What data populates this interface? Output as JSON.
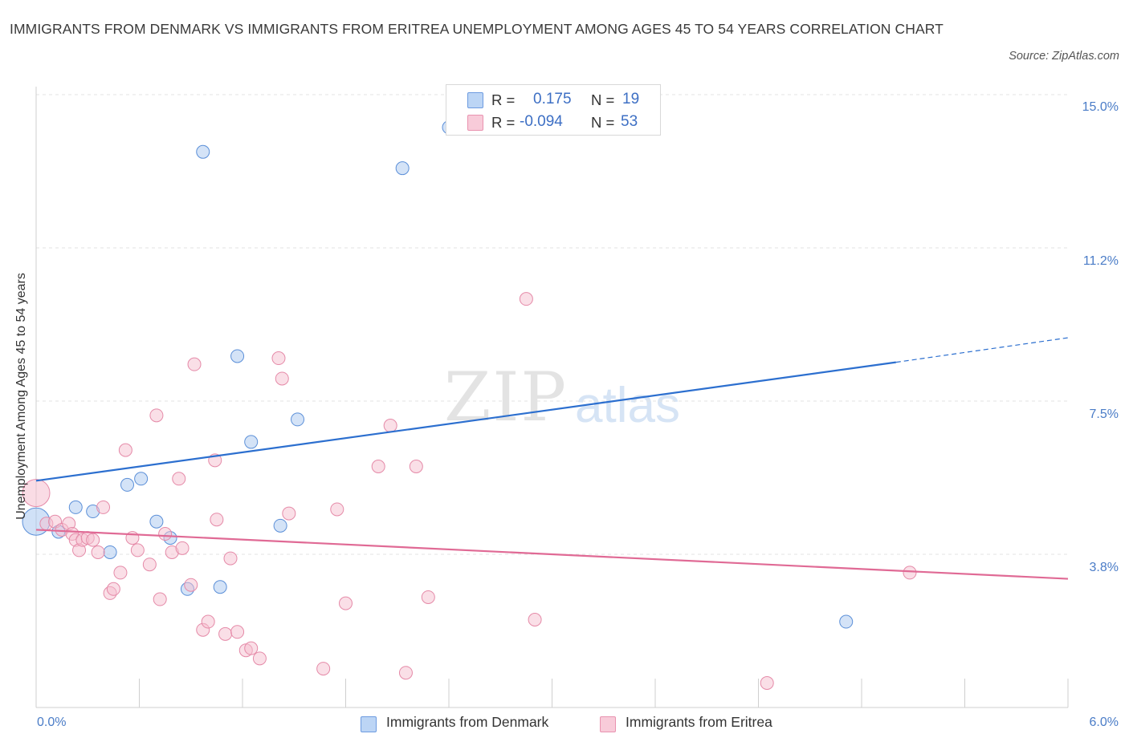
{
  "title": "IMMIGRANTS FROM DENMARK VS IMMIGRANTS FROM ERITREA UNEMPLOYMENT AMONG AGES 45 TO 54 YEARS CORRELATION CHART",
  "source": "Source: ZipAtlas.com",
  "watermark": {
    "zip": "ZIP",
    "atlas": "atlas"
  },
  "legend_top": {
    "rows": [
      {
        "r_label": "R =",
        "r_value": "0.175",
        "n_label": "N =",
        "n_value": "19"
      },
      {
        "r_label": "R =",
        "r_value": "-0.094",
        "n_label": "N =",
        "n_value": "53"
      }
    ]
  },
  "legend_bottom": [
    "Immigrants from Denmark",
    "Immigrants from Eritrea"
  ],
  "colors": {
    "denmark_fill": "#a9c8f0",
    "denmark_stroke": "#5b8fd8",
    "denmark_line": "#2c6fcf",
    "eritrea_fill": "#f6bfd0",
    "eritrea_stroke": "#e58aa8",
    "eritrea_line": "#e06a95",
    "tick_label": "#4a7cc7",
    "grid": "#e3e3e3"
  },
  "chart_data": {
    "type": "scatter",
    "title": "IMMIGRANTS FROM DENMARK VS IMMIGRANTS FROM ERITREA UNEMPLOYMENT AMONG AGES 45 TO 54 YEARS CORRELATION CHART",
    "xlabel": "",
    "ylabel": "Unemployment Among Ages 45 to 54 years",
    "xlim": [
      0,
      6
    ],
    "ylim": [
      0,
      15
    ],
    "x_tick_labels": [
      "0.0%",
      "6.0%"
    ],
    "y_tick_labels": [
      "15.0%",
      "11.2%",
      "7.5%",
      "3.8%"
    ],
    "y_tick_values": [
      15.0,
      11.25,
      7.5,
      3.75
    ],
    "grid": true,
    "legend_position": "bottom",
    "series": [
      {
        "name": "Immigrants from Denmark",
        "R": 0.175,
        "N": 19,
        "trend": {
          "x0": 0.0,
          "y0": 5.55,
          "x1": 5.0,
          "y1": 8.45,
          "dashed_to": [
            6.0,
            9.05
          ]
        },
        "points": [
          {
            "x": 0.0,
            "y": 4.55,
            "big": true
          },
          {
            "x": 0.13,
            "y": 4.3
          },
          {
            "x": 0.23,
            "y": 4.9
          },
          {
            "x": 0.33,
            "y": 4.8
          },
          {
            "x": 0.43,
            "y": 3.8
          },
          {
            "x": 0.53,
            "y": 5.45
          },
          {
            "x": 0.61,
            "y": 5.6
          },
          {
            "x": 0.7,
            "y": 4.55
          },
          {
            "x": 0.78,
            "y": 4.15
          },
          {
            "x": 0.88,
            "y": 2.9
          },
          {
            "x": 0.97,
            "y": 13.6
          },
          {
            "x": 1.07,
            "y": 2.95
          },
          {
            "x": 1.17,
            "y": 8.6
          },
          {
            "x": 1.25,
            "y": 6.5
          },
          {
            "x": 1.42,
            "y": 4.45
          },
          {
            "x": 1.52,
            "y": 7.05
          },
          {
            "x": 2.13,
            "y": 13.2
          },
          {
            "x": 2.4,
            "y": 14.2
          },
          {
            "x": 4.71,
            "y": 2.1
          }
        ]
      },
      {
        "name": "Immigrants from Eritrea",
        "R": -0.094,
        "N": 53,
        "trend": {
          "x0": 0.0,
          "y0": 4.35,
          "x1": 6.0,
          "y1": 3.15
        },
        "points": [
          {
            "x": 0.0,
            "y": 5.25,
            "big": true
          },
          {
            "x": 0.06,
            "y": 4.5
          },
          {
            "x": 0.11,
            "y": 4.55
          },
          {
            "x": 0.15,
            "y": 4.35
          },
          {
            "x": 0.19,
            "y": 4.5
          },
          {
            "x": 0.21,
            "y": 4.25
          },
          {
            "x": 0.23,
            "y": 4.1
          },
          {
            "x": 0.25,
            "y": 3.85
          },
          {
            "x": 0.27,
            "y": 4.1
          },
          {
            "x": 0.3,
            "y": 4.15
          },
          {
            "x": 0.33,
            "y": 4.1
          },
          {
            "x": 0.36,
            "y": 3.8
          },
          {
            "x": 0.39,
            "y": 4.9
          },
          {
            "x": 0.43,
            "y": 2.8
          },
          {
            "x": 0.45,
            "y": 2.9
          },
          {
            "x": 0.49,
            "y": 3.3
          },
          {
            "x": 0.52,
            "y": 6.3
          },
          {
            "x": 0.56,
            "y": 4.15
          },
          {
            "x": 0.59,
            "y": 3.85
          },
          {
            "x": 0.66,
            "y": 3.5
          },
          {
            "x": 0.7,
            "y": 7.15
          },
          {
            "x": 0.72,
            "y": 2.65
          },
          {
            "x": 0.75,
            "y": 4.25
          },
          {
            "x": 0.79,
            "y": 3.8
          },
          {
            "x": 0.83,
            "y": 5.6
          },
          {
            "x": 0.85,
            "y": 3.9
          },
          {
            "x": 0.9,
            "y": 3.0
          },
          {
            "x": 0.92,
            "y": 8.4
          },
          {
            "x": 0.97,
            "y": 1.9
          },
          {
            "x": 1.0,
            "y": 2.1
          },
          {
            "x": 1.04,
            "y": 6.05
          },
          {
            "x": 1.05,
            "y": 4.6
          },
          {
            "x": 1.1,
            "y": 1.8
          },
          {
            "x": 1.13,
            "y": 3.65
          },
          {
            "x": 1.17,
            "y": 1.85
          },
          {
            "x": 1.22,
            "y": 1.4
          },
          {
            "x": 1.25,
            "y": 1.45
          },
          {
            "x": 1.3,
            "y": 1.2
          },
          {
            "x": 1.41,
            "y": 8.55
          },
          {
            "x": 1.43,
            "y": 8.05
          },
          {
            "x": 1.47,
            "y": 4.75
          },
          {
            "x": 1.67,
            "y": 0.95
          },
          {
            "x": 1.75,
            "y": 4.85
          },
          {
            "x": 1.8,
            "y": 2.55
          },
          {
            "x": 1.99,
            "y": 5.9
          },
          {
            "x": 2.06,
            "y": 6.9
          },
          {
            "x": 2.15,
            "y": 0.85
          },
          {
            "x": 2.21,
            "y": 5.9
          },
          {
            "x": 2.28,
            "y": 2.7
          },
          {
            "x": 2.85,
            "y": 10.0
          },
          {
            "x": 2.9,
            "y": 2.15
          },
          {
            "x": 4.25,
            "y": 0.6
          },
          {
            "x": 5.08,
            "y": 3.3
          }
        ]
      }
    ]
  }
}
